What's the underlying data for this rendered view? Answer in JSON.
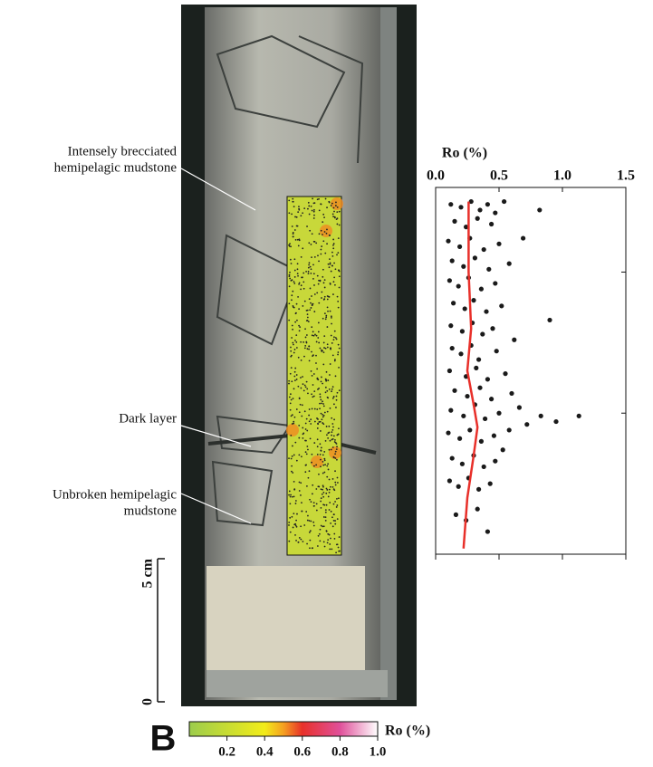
{
  "annotations": {
    "breccia": [
      "Intensely brecciated",
      "hemipelagic mudstone"
    ],
    "dark": "Dark layer",
    "unbroken": [
      "Unbroken hemipelagic",
      "mudstone"
    ]
  },
  "panel_label": "B",
  "scale_bar": {
    "ticks": [
      0,
      {
        "value": 5,
        "label": "5 cm"
      }
    ]
  },
  "colorbar": {
    "label": "Ro (%)",
    "lim": [
      0,
      1
    ],
    "ticks": [
      0.2,
      0.4,
      0.6,
      0.8,
      {
        "value": 1,
        "label": "1.0"
      }
    ]
  },
  "chart_data": {
    "type": "scatter",
    "title": "Ro (%)",
    "color": "#1a1a1a",
    "xlim": [
      0,
      1.5
    ],
    "xticks": [
      {
        "value": 0,
        "label": "0.0"
      },
      0.5,
      {
        "value": 1,
        "label": "1.0"
      },
      1.5
    ],
    "ylim": [
      5,
      18
    ],
    "yticks": [
      5,
      10,
      15
    ],
    "x": [
      0.12,
      0.2,
      0.28,
      0.35,
      0.41,
      0.47,
      0.54,
      0.82,
      0.15,
      0.24,
      0.33,
      0.44,
      0.69,
      0.1,
      0.19,
      0.27,
      0.38,
      0.5,
      0.13,
      0.22,
      0.31,
      0.42,
      0.58,
      0.11,
      0.18,
      0.26,
      0.36,
      0.47,
      0.9,
      0.14,
      0.23,
      0.3,
      0.4,
      0.52,
      0.12,
      0.21,
      0.29,
      0.37,
      0.45,
      0.62,
      0.13,
      0.2,
      0.28,
      0.34,
      0.48,
      0.11,
      0.24,
      0.32,
      0.41,
      0.55,
      0.83,
      0.95,
      1.13,
      0.72,
      0.15,
      0.25,
      0.35,
      0.44,
      0.6,
      0.66,
      0.12,
      0.22,
      0.31,
      0.39,
      0.5,
      0.58,
      0.1,
      0.19,
      0.27,
      0.36,
      0.46,
      0.53,
      0.13,
      0.21,
      0.3,
      0.38,
      0.47,
      0.11,
      0.18,
      0.26,
      0.34,
      0.43,
      0.16,
      0.24,
      0.33,
      0.41
    ],
    "values": [
      17.4,
      17.3,
      17.5,
      17.2,
      17.4,
      17.1,
      17.5,
      17.2,
      16.8,
      16.6,
      16.9,
      16.7,
      16.2,
      16.1,
      15.9,
      16.2,
      15.8,
      16.0,
      15.4,
      15.2,
      15.5,
      15.1,
      15.3,
      14.7,
      14.5,
      14.8,
      14.4,
      14.6,
      13.3,
      13.9,
      13.7,
      14.0,
      13.6,
      13.8,
      13.1,
      12.9,
      13.2,
      12.8,
      13.0,
      12.6,
      12.3,
      12.1,
      12.4,
      11.9,
      12.2,
      11.5,
      11.3,
      11.6,
      11.2,
      11.4,
      9.9,
      9.7,
      9.9,
      9.6,
      10.8,
      10.6,
      10.9,
      10.5,
      10.7,
      10.2,
      10.1,
      9.9,
      10.3,
      9.8,
      10.0,
      9.4,
      9.3,
      9.1,
      9.4,
      9.0,
      9.2,
      8.7,
      8.4,
      8.2,
      8.5,
      8.1,
      8.3,
      7.6,
      7.4,
      7.7,
      7.3,
      7.5,
      6.4,
      6.2,
      6.6,
      5.8
    ],
    "trend": {
      "color": "#e8302a",
      "x": [
        0.22,
        0.25,
        0.3,
        0.33,
        0.3,
        0.25,
        0.28,
        0.26,
        0.26
      ],
      "y": [
        5.2,
        7,
        8.5,
        9.5,
        10.3,
        11.5,
        13,
        15,
        17.5
      ]
    }
  }
}
